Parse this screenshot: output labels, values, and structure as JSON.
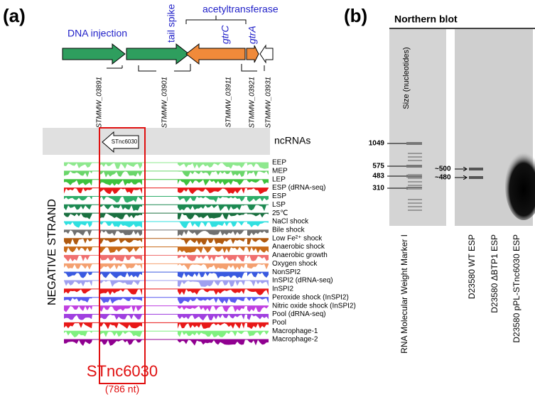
{
  "panel_a": {
    "label": "(a)",
    "genes": {
      "dna_injection": "DNA injection",
      "tail_spike": "tail spike",
      "acetyltransferase": "acetyltransferase",
      "gtrC": "gtrC",
      "gtrA": "gtrA"
    },
    "locus_tags": [
      "STMMW_03891",
      "STMMW_03901",
      "STMMW_03911",
      "STMMW_03921",
      "STMMW_03931"
    ],
    "ncrna_track": "ncRNAs",
    "ncrna_name": "STnc6030",
    "strand": "NEGATIVE STRAND",
    "tracks": [
      {
        "label": "EEP",
        "color": "#8ee88e"
      },
      {
        "label": "MEP",
        "color": "#6ad66a"
      },
      {
        "label": "LEP",
        "color": "#3ec23e"
      },
      {
        "label": "ESP (dRNA-seq)",
        "color": "#e81818"
      },
      {
        "label": "ESP",
        "color": "#2fae6a"
      },
      {
        "label": "LSP",
        "color": "#1d8a52"
      },
      {
        "label": "25℃",
        "color": "#1a7040"
      },
      {
        "label": "NaCl shock",
        "color": "#30e0e0"
      },
      {
        "label": "Bile shock",
        "color": "#707070"
      },
      {
        "label": "Low Fe²⁺ shock",
        "color": "#b05a10"
      },
      {
        "label": "Anaerobic shock",
        "color": "#c86a18"
      },
      {
        "label": "Anaerobic growth",
        "color": "#f07070"
      },
      {
        "label": "Oxygen shock",
        "color": "#f4a070"
      },
      {
        "label": "NonSPI2",
        "color": "#3a5ae0"
      },
      {
        "label": "InSPI2 (dRNA-seq)",
        "color": "#a0a0f0"
      },
      {
        "label": "InSPI2",
        "color": "#e81818"
      },
      {
        "label": "Peroxide shock (InSPI2)",
        "color": "#5a5af0"
      },
      {
        "label": "Nitric oxide shock (InSPI2)",
        "color": "#c040e0"
      },
      {
        "label": "Pool (dRNA-seq)",
        "color": "#a040e0"
      },
      {
        "label": "Pool",
        "color": "#e81818"
      },
      {
        "label": "Macrophage-1",
        "color": "#80f080"
      },
      {
        "label": "Macrophage-2",
        "color": "#900090"
      }
    ],
    "highlight_name": "STnc6030",
    "highlight_length": "(786 nt)"
  },
  "panel_b": {
    "label": "(b)",
    "title": "Northern blot",
    "axis_label": "Size (nucleotides)",
    "markers": [
      1049,
      575,
      483,
      310
    ],
    "band_labels": [
      "~500",
      "~480"
    ],
    "lanes": [
      "RNA Molecular Weight Marker I",
      "D23580 WT ESP",
      "D23580 ΔBTP1 ESP",
      "D23580 pPL-STnc6030 ESP"
    ]
  }
}
